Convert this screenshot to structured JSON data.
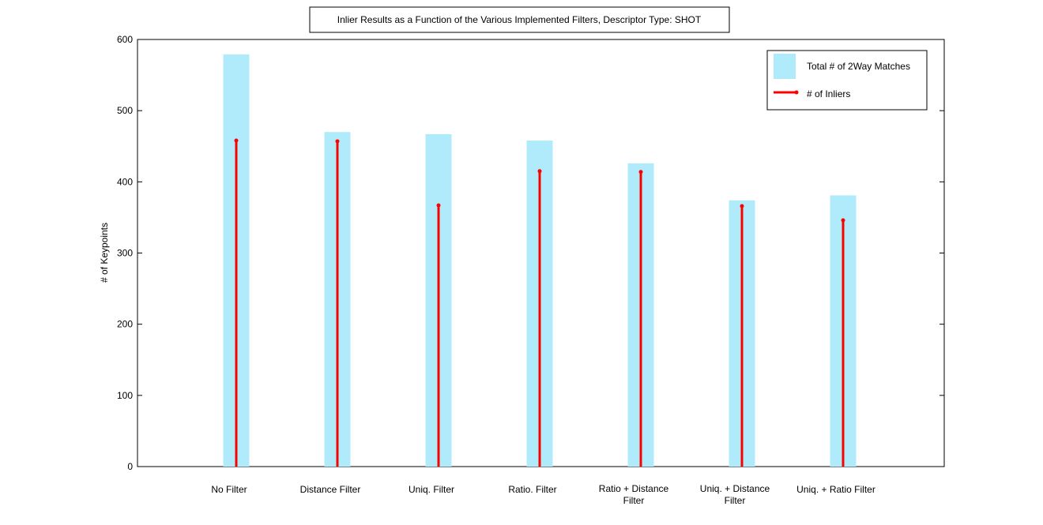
{
  "chart_data": {
    "type": "bar",
    "title": "Inlier Results as a Function of the Various Implemented Filters, Descriptor Type: SHOT",
    "xlabel": "",
    "ylabel": "# of Keypoints",
    "ylim": [
      0,
      600
    ],
    "yticks": [
      0,
      100,
      200,
      300,
      400,
      500,
      600
    ],
    "grid": false,
    "legend_position": "top-right",
    "categories": [
      [
        "No Filter"
      ],
      [
        "Distance Filter"
      ],
      [
        "Uniq. Filter"
      ],
      [
        "Ratio. Filter"
      ],
      [
        "Ratio + Distance",
        "Filter"
      ],
      [
        "Uniq. + Distance",
        "Filter"
      ],
      [
        "Uniq. + Ratio Filter"
      ]
    ],
    "series": [
      {
        "name": "Total # of 2Way Matches",
        "style": "bar",
        "color": "#b0ebfb",
        "values": [
          579,
          470,
          467,
          458,
          426,
          374,
          381
        ]
      },
      {
        "name": "# of Inliers",
        "style": "stem",
        "color": "#ff0000",
        "values": [
          458,
          457,
          367,
          415,
          414,
          366,
          346
        ]
      }
    ]
  }
}
